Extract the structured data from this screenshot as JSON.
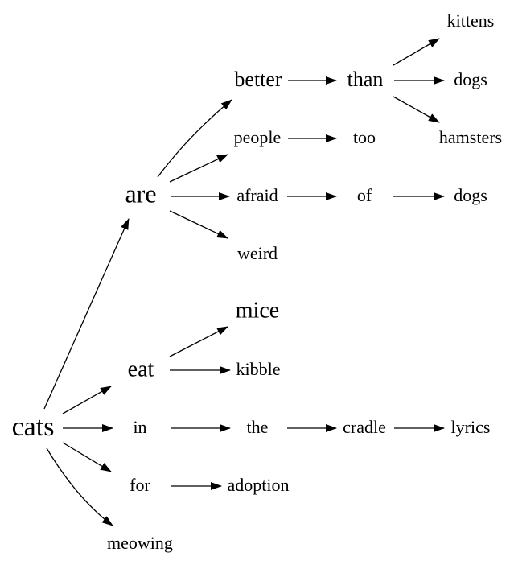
{
  "words": {
    "cats": "cats",
    "are": "are",
    "better": "better",
    "than": "than",
    "kittens": "kittens",
    "dogs1": "dogs",
    "hamsters": "hamsters",
    "people": "people",
    "too": "too",
    "afraid": "afraid",
    "of": "of",
    "dogs2": "dogs",
    "weird": "weird",
    "eat": "eat",
    "mice": "mice",
    "kibble": "kibble",
    "in": "in",
    "the": "the",
    "cradle": "cradle",
    "lyrics": "lyrics",
    "for": "for",
    "adoption": "adoption",
    "meowing": "meowing"
  },
  "edges": [
    [
      "cats",
      "are"
    ],
    [
      "cats",
      "eat"
    ],
    [
      "cats",
      "in"
    ],
    [
      "cats",
      "for"
    ],
    [
      "cats",
      "meowing"
    ],
    [
      "are",
      "better"
    ],
    [
      "are",
      "people"
    ],
    [
      "are",
      "afraid"
    ],
    [
      "are",
      "weird"
    ],
    [
      "better",
      "than"
    ],
    [
      "than",
      "kittens"
    ],
    [
      "than",
      "dogs1"
    ],
    [
      "than",
      "hamsters"
    ],
    [
      "people",
      "too"
    ],
    [
      "afraid",
      "of"
    ],
    [
      "of",
      "dogs2"
    ],
    [
      "eat",
      "mice"
    ],
    [
      "eat",
      "kibble"
    ],
    [
      "in",
      "the"
    ],
    [
      "the",
      "cradle"
    ],
    [
      "cradle",
      "lyrics"
    ],
    [
      "for",
      "adoption"
    ]
  ]
}
